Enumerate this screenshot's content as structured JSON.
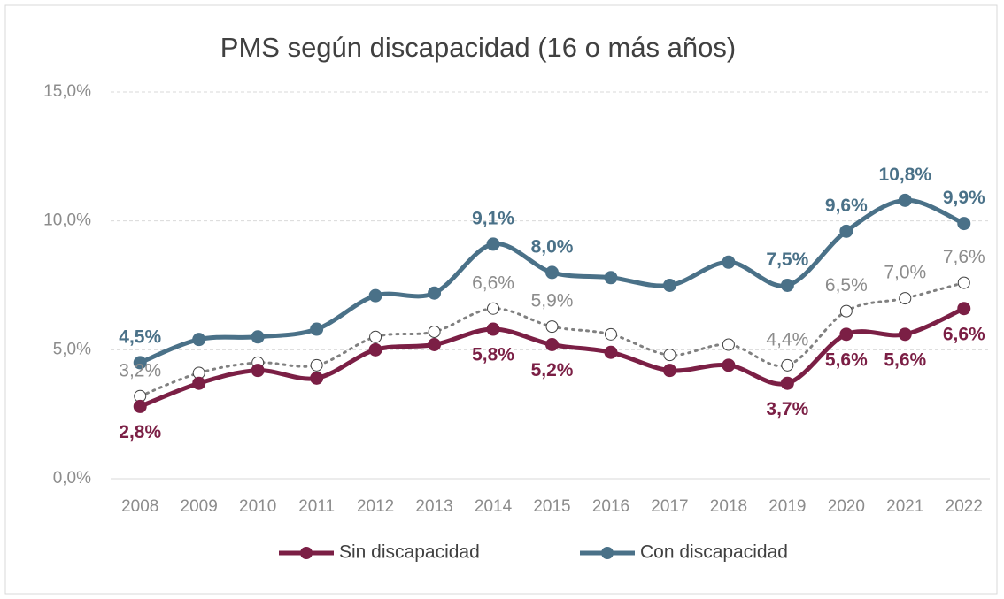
{
  "chart_data": {
    "type": "line",
    "title": "PMS según discapacidad (16 o más años)",
    "categories": [
      "2008",
      "2009",
      "2010",
      "2011",
      "2012",
      "2013",
      "2014",
      "2015",
      "2016",
      "2017",
      "2018",
      "2019",
      "2020",
      "2021",
      "2022"
    ],
    "series": [
      {
        "name": "Sin discapacidad",
        "color": "#7b1f45",
        "style": "solid",
        "values": [
          2.8,
          3.7,
          4.2,
          3.9,
          5.0,
          5.2,
          5.8,
          5.2,
          4.9,
          4.2,
          4.4,
          3.7,
          5.6,
          5.6,
          6.6
        ],
        "value_labels": [
          "2,8%",
          null,
          null,
          null,
          null,
          null,
          "5,8%",
          "5,2%",
          null,
          null,
          null,
          "3,7%",
          "5,6%",
          "5,6%",
          "6,6%"
        ]
      },
      {
        "name": "Con discapacidad",
        "color": "#4a7188",
        "style": "solid",
        "values": [
          4.5,
          5.4,
          5.5,
          5.8,
          7.1,
          7.2,
          9.1,
          8.0,
          7.8,
          7.5,
          8.4,
          7.5,
          9.6,
          10.8,
          9.9
        ],
        "value_labels": [
          "4,5%",
          null,
          null,
          null,
          null,
          null,
          "9,1%",
          "8,0%",
          null,
          null,
          null,
          "7,5%",
          "9,6%",
          "10,8%",
          "9,9%"
        ]
      },
      {
        "color": "#808080",
        "style": "dotted",
        "values": [
          3.2,
          4.1,
          4.5,
          4.4,
          5.5,
          5.7,
          6.6,
          5.9,
          5.6,
          4.8,
          5.2,
          4.4,
          6.5,
          7.0,
          7.6
        ],
        "value_labels": [
          "3,2%",
          null,
          null,
          null,
          null,
          null,
          "6,6%",
          "5,9%",
          null,
          null,
          null,
          "4,4%",
          "6,5%",
          "7,0%",
          "7,6%"
        ]
      }
    ],
    "ylim": [
      0,
      15
    ],
    "yticks": [
      {
        "value": 0,
        "label": "0,0%"
      },
      {
        "value": 5,
        "label": "5,0%"
      },
      {
        "value": 10,
        "label": "10,0%"
      },
      {
        "value": 15,
        "label": "15,0%"
      }
    ],
    "grid": true,
    "legend": "bottom"
  }
}
